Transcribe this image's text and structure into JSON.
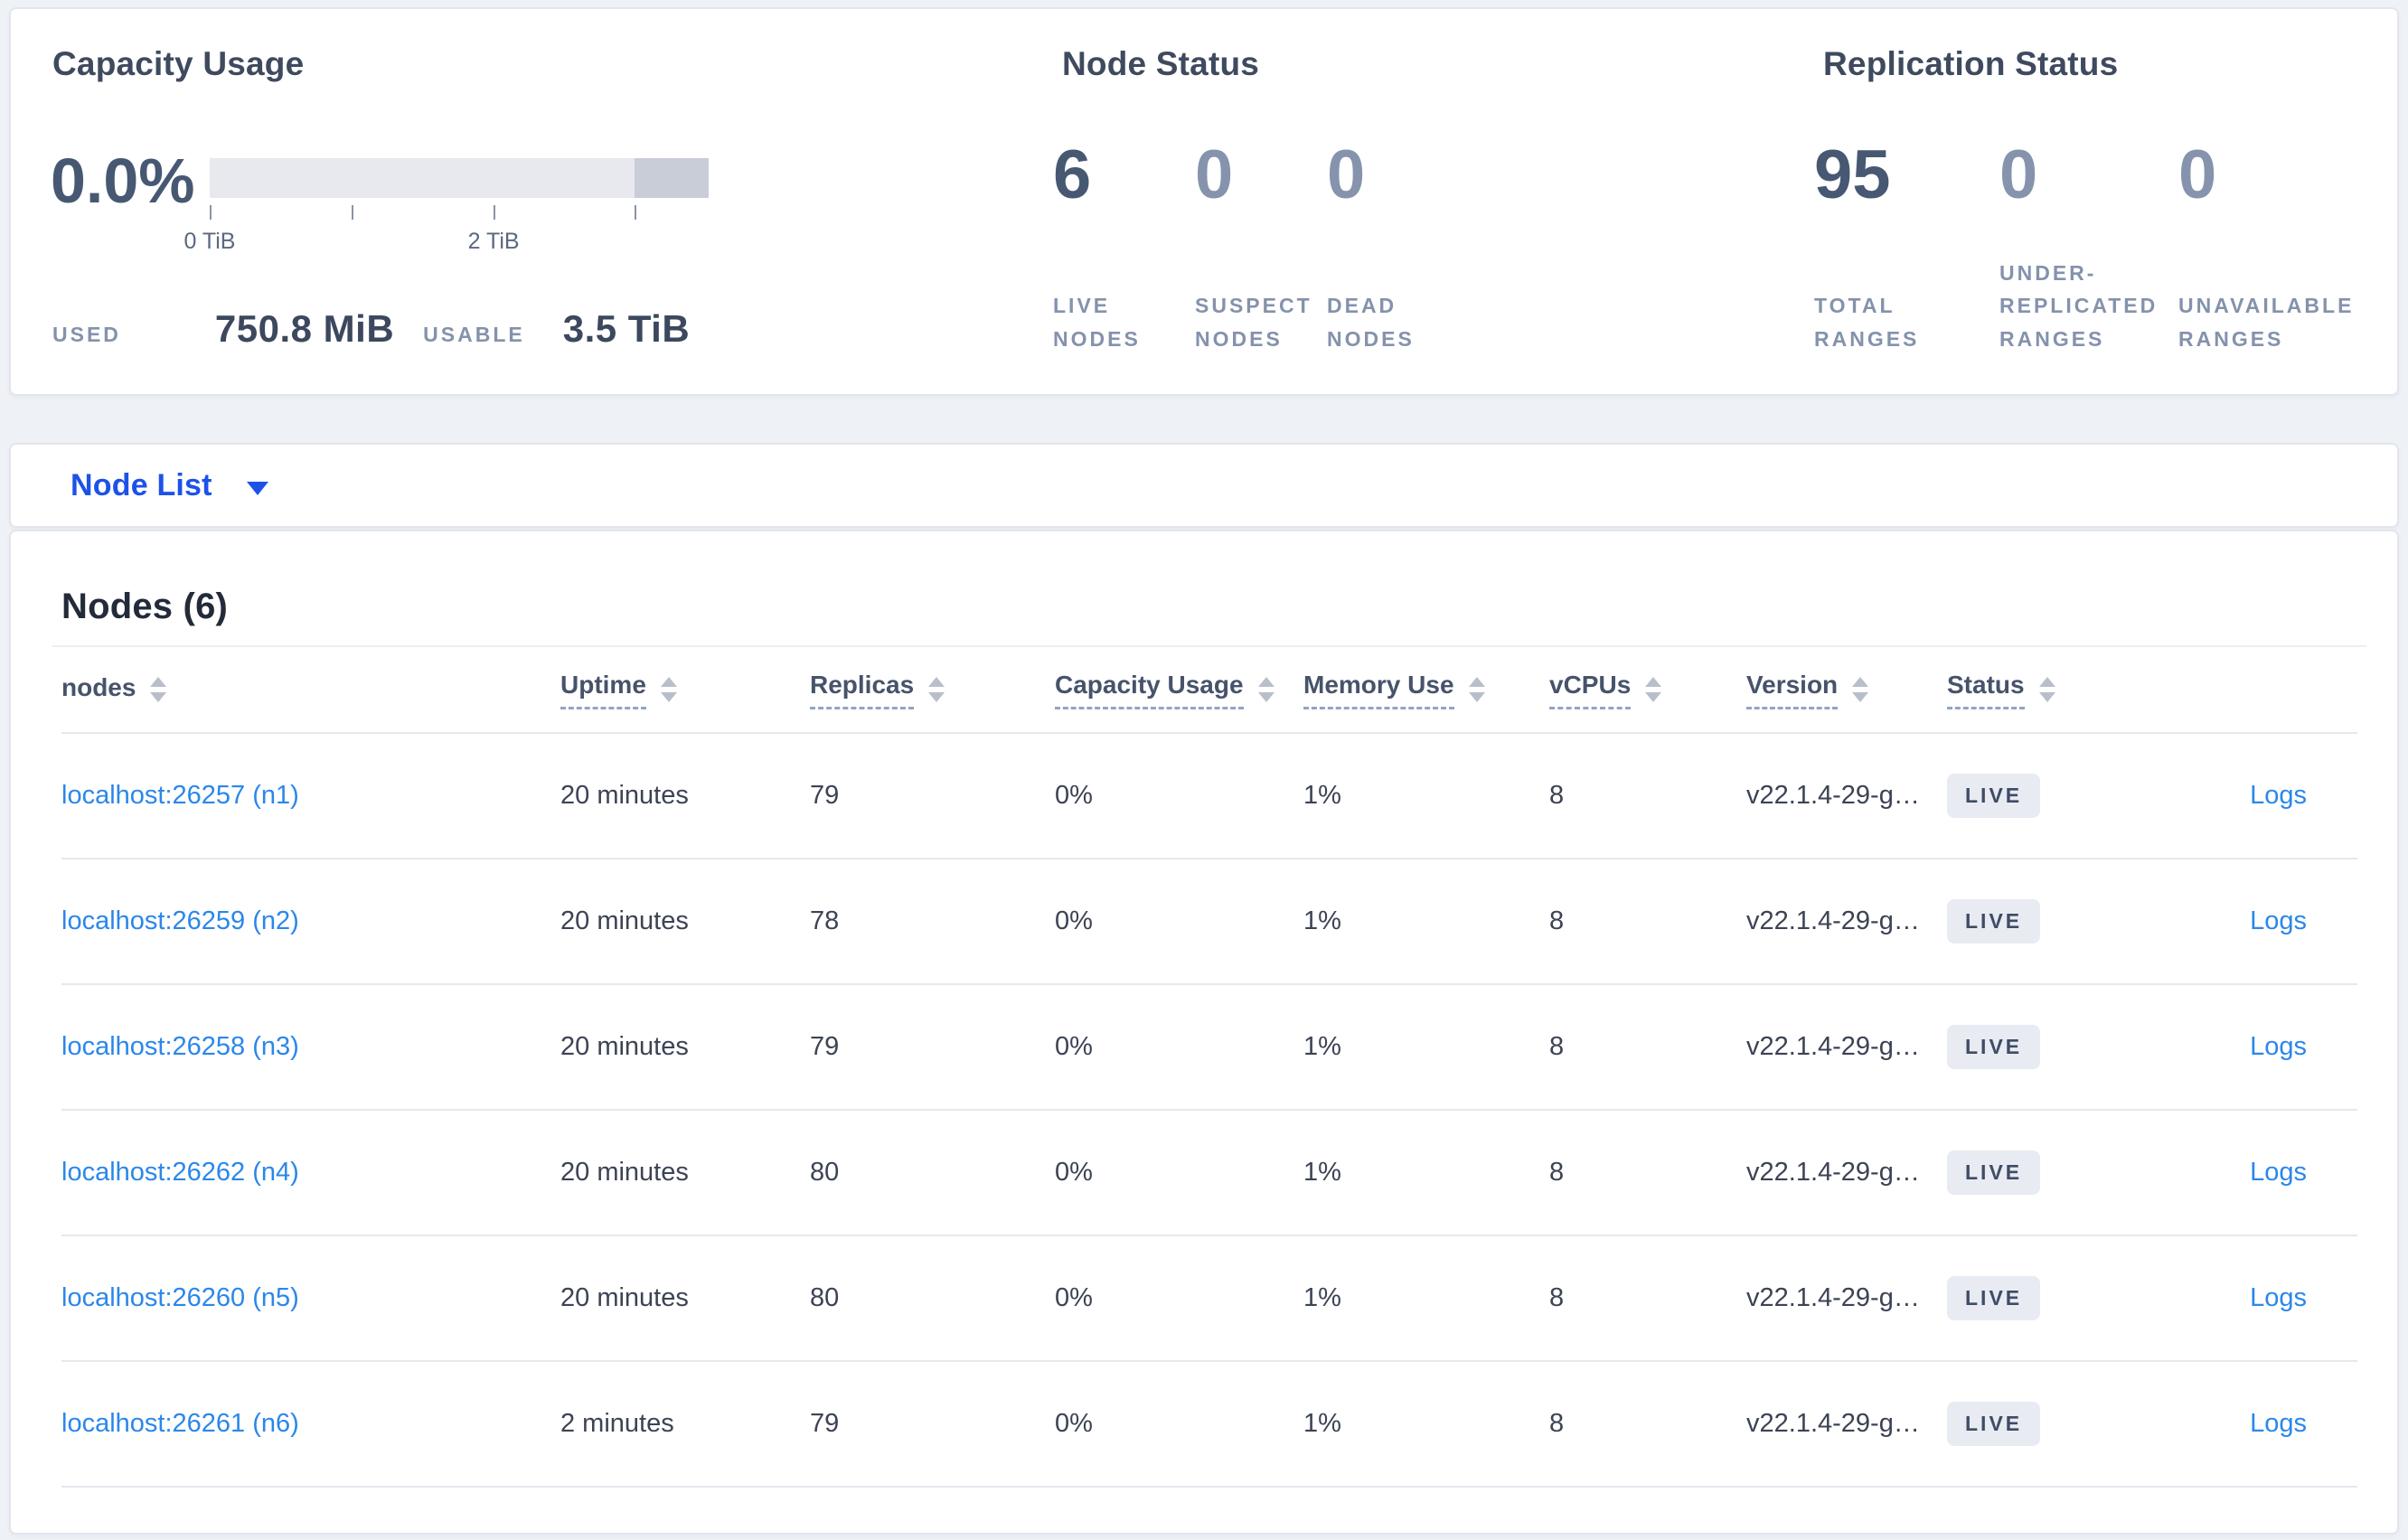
{
  "colors": {
    "accent_blue": "#1d52e8",
    "row_link_blue": "#2b87ea",
    "badge_bg": "#e8ebf2",
    "bar_light_gray": "#e7e9ee",
    "bar_dark_gray": "#c9cdd8",
    "page_bg": "#eef1f6"
  },
  "capacity_panel": {
    "title": "Capacity Usage",
    "percent": "0.0%",
    "used_label": "USED",
    "used_value": "750.8 MiB",
    "usable_label": "USABLE",
    "usable_value": "3.5 TiB",
    "bar": {
      "light_end_pct": 85.1,
      "ticks": [
        {
          "pos_pct": 0,
          "label": "0 TiB"
        },
        {
          "pos_pct": 28.4,
          "label": ""
        },
        {
          "pos_pct": 56.9,
          "label": "2 TiB"
        },
        {
          "pos_pct": 85.1,
          "label": ""
        }
      ]
    }
  },
  "node_status_panel": {
    "title": "Node Status",
    "stats": [
      {
        "value": "6",
        "label": "LIVE NODES",
        "muted": false
      },
      {
        "value": "0",
        "label": "SUSPECT NODES",
        "muted": true
      },
      {
        "value": "0",
        "label": "DEAD NODES",
        "muted": true
      }
    ]
  },
  "replication_panel": {
    "title": "Replication Status",
    "stats": [
      {
        "value": "95",
        "label": "TOTAL RANGES",
        "muted": false
      },
      {
        "value": "0",
        "label": "UNDER-REPLICATED RANGES",
        "muted": true
      },
      {
        "value": "0",
        "label": "UNAVAILABLE RANGES",
        "muted": true
      }
    ]
  },
  "view_selector": {
    "label": "Node List"
  },
  "nodes_table": {
    "heading": "Nodes (6)",
    "columns": [
      {
        "label": "nodes",
        "underlined": false,
        "sortable": true
      },
      {
        "label": "Uptime",
        "underlined": true,
        "sortable": true
      },
      {
        "label": "Replicas",
        "underlined": true,
        "sortable": true
      },
      {
        "label": "Capacity Usage",
        "underlined": true,
        "sortable": true
      },
      {
        "label": "Memory Use",
        "underlined": true,
        "sortable": true
      },
      {
        "label": "vCPUs",
        "underlined": true,
        "sortable": true
      },
      {
        "label": "Version",
        "underlined": true,
        "sortable": true
      },
      {
        "label": "Status",
        "underlined": true,
        "sortable": true
      },
      {
        "label": "",
        "underlined": false,
        "sortable": false
      }
    ],
    "rows": [
      {
        "node": "localhost:26257 (n1)",
        "uptime": "20 minutes",
        "replicas": "79",
        "capacity": "0%",
        "memory": "1%",
        "vcpus": "8",
        "version": "v22.1.4-29-g…",
        "status": "LIVE",
        "logs_label": "Logs"
      },
      {
        "node": "localhost:26259 (n2)",
        "uptime": "20 minutes",
        "replicas": "78",
        "capacity": "0%",
        "memory": "1%",
        "vcpus": "8",
        "version": "v22.1.4-29-g…",
        "status": "LIVE",
        "logs_label": "Logs"
      },
      {
        "node": "localhost:26258 (n3)",
        "uptime": "20 minutes",
        "replicas": "79",
        "capacity": "0%",
        "memory": "1%",
        "vcpus": "8",
        "version": "v22.1.4-29-g…",
        "status": "LIVE",
        "logs_label": "Logs"
      },
      {
        "node": "localhost:26262 (n4)",
        "uptime": "20 minutes",
        "replicas": "80",
        "capacity": "0%",
        "memory": "1%",
        "vcpus": "8",
        "version": "v22.1.4-29-g…",
        "status": "LIVE",
        "logs_label": "Logs"
      },
      {
        "node": "localhost:26260 (n5)",
        "uptime": "20 minutes",
        "replicas": "80",
        "capacity": "0%",
        "memory": "1%",
        "vcpus": "8",
        "version": "v22.1.4-29-g…",
        "status": "LIVE",
        "logs_label": "Logs"
      },
      {
        "node": "localhost:26261 (n6)",
        "uptime": "2 minutes",
        "replicas": "79",
        "capacity": "0%",
        "memory": "1%",
        "vcpus": "8",
        "version": "v22.1.4-29-g…",
        "status": "LIVE",
        "logs_label": "Logs"
      }
    ]
  }
}
